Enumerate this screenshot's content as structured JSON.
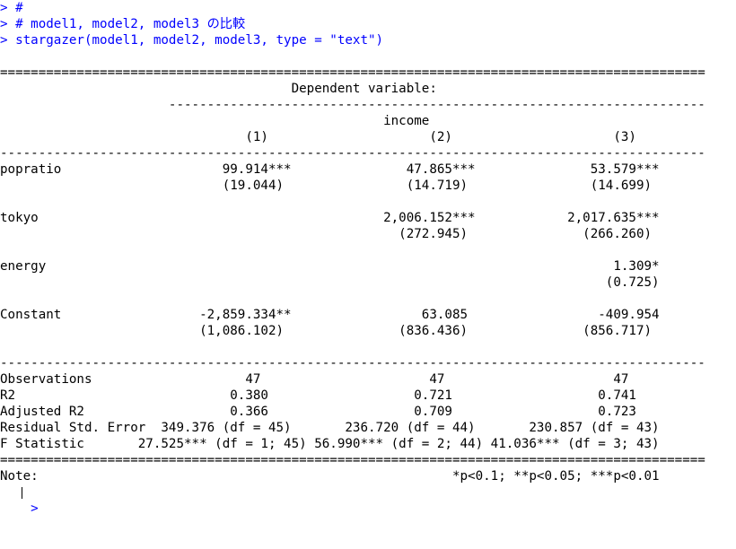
{
  "console": {
    "commands": [
      "> #",
      "> # model1, model2, model3 の比較",
      "> stargazer(model1, model2, model3, type = \"text\")"
    ],
    "output": [
      "",
      "============================================================================================",
      "                                      Dependent variable:",
      "                      ----------------------------------------------------------------------",
      "                                                  income",
      "                                (1)                     (2)                     (3)",
      "--------------------------------------------------------------------------------------------",
      "popratio                     99.914***               47.865***               53.579***",
      "                             (19.044)                (14.719)                (14.699)",
      "",
      "tokyo                                             2,006.152***            2,017.635***",
      "                                                    (272.945)               (266.260)",
      "",
      "energy                                                                          1.309*",
      "                                                                               (0.725)",
      "",
      "Constant                  -2,859.334**                 63.085                 -409.954",
      "                          (1,086.102)               (836.436)               (856.717)",
      "",
      "--------------------------------------------------------------------------------------------",
      "Observations                    47                      47                      47",
      "R2                            0.380                   0.721                   0.741",
      "Adjusted R2                   0.366                   0.709                   0.723",
      "Residual Std. Error  349.376 (df = 45)       236.720 (df = 44)       230.857 (df = 43)",
      "F Statistic       27.525*** (df = 1; 45) 56.990*** (df = 2; 44) 41.036*** (df = 3; 43)",
      "============================================================================================",
      "Note:                                                      *p<0.1; **p<0.05; ***p<0.01"
    ],
    "prompt": ">"
  }
}
